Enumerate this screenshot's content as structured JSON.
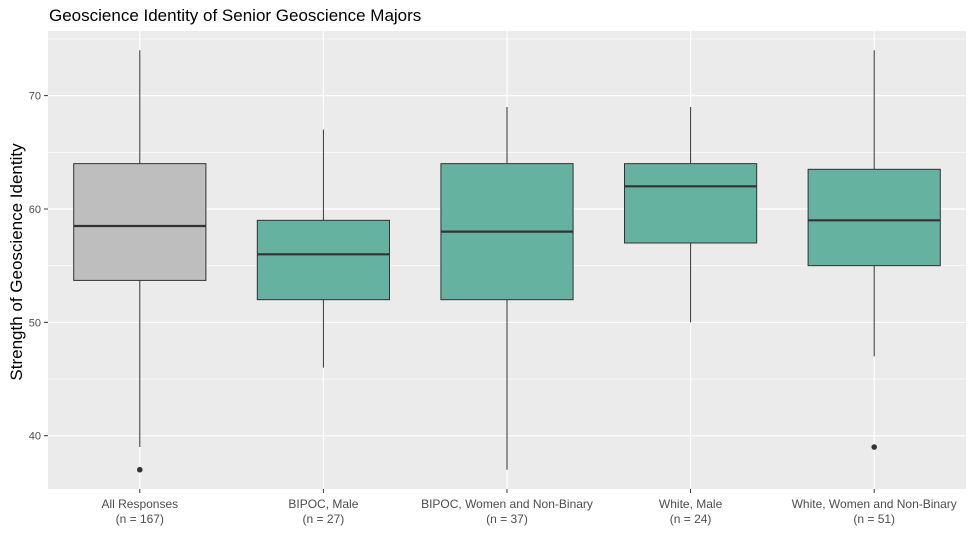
{
  "chart_data": {
    "type": "box",
    "title": "Geoscience Identity of Senior Geoscience Majors",
    "xlabel": "",
    "ylabel": "Strength of Geoscience Identity",
    "ylim": [
      35.3,
      75.7
    ],
    "yticks": [
      40,
      50,
      60,
      70
    ],
    "grid": true,
    "categories": [
      {
        "label": "All Responses",
        "n_label": "(n = 167)",
        "color": "#bebebe",
        "min": 39,
        "q1": 53.7,
        "median": 58.5,
        "q3": 64,
        "max": 74,
        "outliers": [
          37
        ]
      },
      {
        "label": "BIPOC, Male",
        "n_label": "(n = 27)",
        "color": "#66b2a0",
        "min": 46,
        "q1": 52,
        "median": 56,
        "q3": 59,
        "max": 67,
        "outliers": []
      },
      {
        "label": "BIPOC, Women and Non-Binary",
        "n_label": "(n = 37)",
        "color": "#66b2a0",
        "min": 37,
        "q1": 52,
        "median": 58,
        "q3": 64,
        "max": 69,
        "outliers": []
      },
      {
        "label": "White, Male",
        "n_label": "(n = 24)",
        "color": "#66b2a0",
        "min": 50,
        "q1": 57,
        "median": 62,
        "q3": 64,
        "max": 69,
        "outliers": []
      },
      {
        "label": "White, Women and Non-Binary",
        "n_label": "(n = 51)",
        "color": "#66b2a0",
        "min": 47,
        "q1": 55,
        "median": 59,
        "q3": 63.5,
        "max": 74,
        "outliers": [
          39
        ]
      }
    ]
  }
}
